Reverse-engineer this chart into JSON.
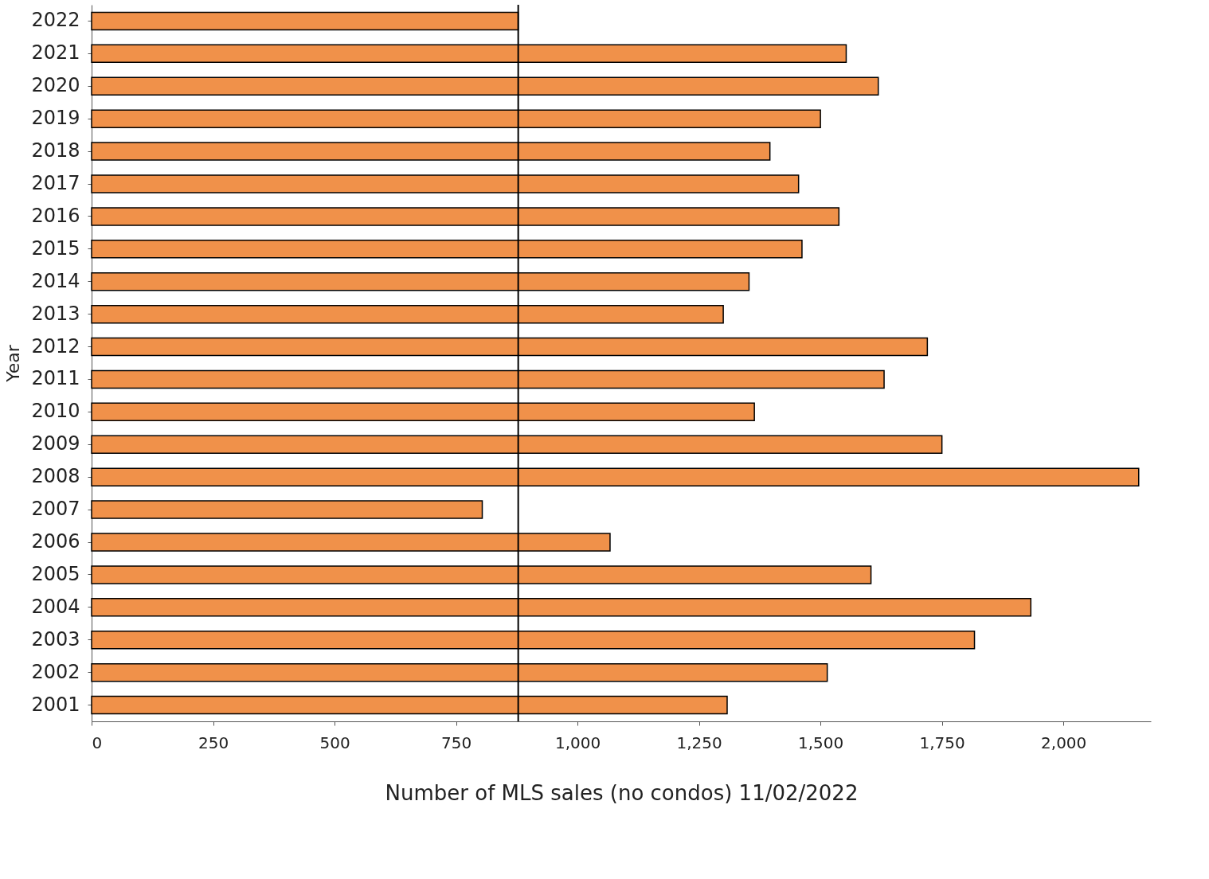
{
  "chart_data": {
    "type": "bar",
    "orientation": "horizontal",
    "xlabel": "Number of MLS sales (no condos) 11/02/2022",
    "ylabel": "Year",
    "categories": [
      "2022",
      "2021",
      "2020",
      "2019",
      "2018",
      "2017",
      "2016",
      "2015",
      "2014",
      "2013",
      "2012",
      "2011",
      "2010",
      "2009",
      "2008",
      "2007",
      "2006",
      "2005",
      "2004",
      "2003",
      "2002",
      "2001"
    ],
    "values": [
      878,
      1553,
      1619,
      1500,
      1396,
      1455,
      1538,
      1462,
      1353,
      1300,
      1720,
      1631,
      1364,
      1750,
      2155,
      804,
      1067,
      1604,
      1933,
      1817,
      1514,
      1308
    ],
    "color": "#f0914a",
    "xlim": [
      0,
      2180
    ],
    "xticks": [
      0,
      250,
      500,
      750,
      {
        "value": 1000,
        "label": "1,000"
      },
      {
        "value": 1250,
        "label": "1,250"
      },
      {
        "value": 1500,
        "label": "1,500"
      },
      {
        "value": 1750,
        "label": "1,750"
      },
      {
        "value": 2000,
        "label": "2,000"
      }
    ],
    "ref_lines": [
      {
        "axis": "x",
        "value": 878,
        "color": "#000000"
      }
    ],
    "grid": false
  }
}
